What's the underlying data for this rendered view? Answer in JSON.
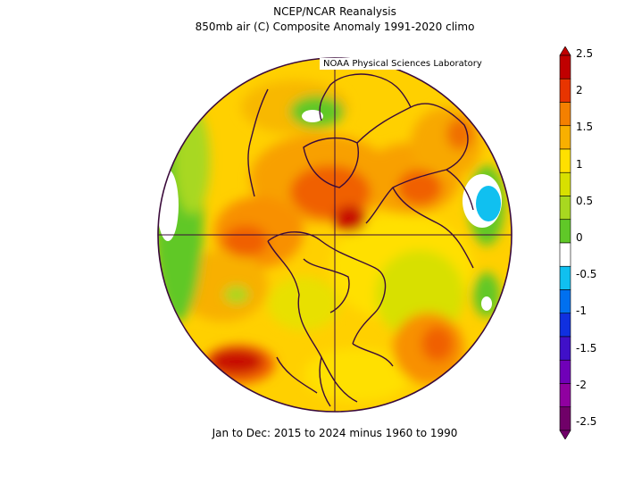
{
  "title_line1": "NCEP/NCAR Reanalysis",
  "title_line2": "850mb air (C) Composite Anomaly 1991-2020 climo",
  "credit": "NOAA Physical Sciences Laboratory",
  "subtitle": "Jan to Dec: 2015 to 2024 minus 1960 to 1990",
  "colorbar": {
    "labels": [
      "2.5",
      "2",
      "1.5",
      "1",
      "0.5",
      "0",
      "-0.5",
      "-1",
      "-1.5",
      "-2",
      "-2.5"
    ],
    "colors": [
      "#c00000",
      "#e83400",
      "#f48000",
      "#f8b000",
      "#ffe000",
      "#d8e000",
      "#a8d820",
      "#60c828",
      "#ffffff",
      "#10c0f0",
      "#0070f0",
      "#1030e0",
      "#4010c8",
      "#7000b8",
      "#9000a0",
      "#700068"
    ]
  },
  "legend_colors": {
    "strong_warm": "#c81000",
    "warm": "#f06000",
    "mild_warm": "#f8a800",
    "slight_warm": "#ffd800",
    "near_neutral_warm": "#d8e000",
    "weak_warm": "#60c828",
    "neutral": "#ffffff",
    "cool": "#10c0f0"
  }
}
